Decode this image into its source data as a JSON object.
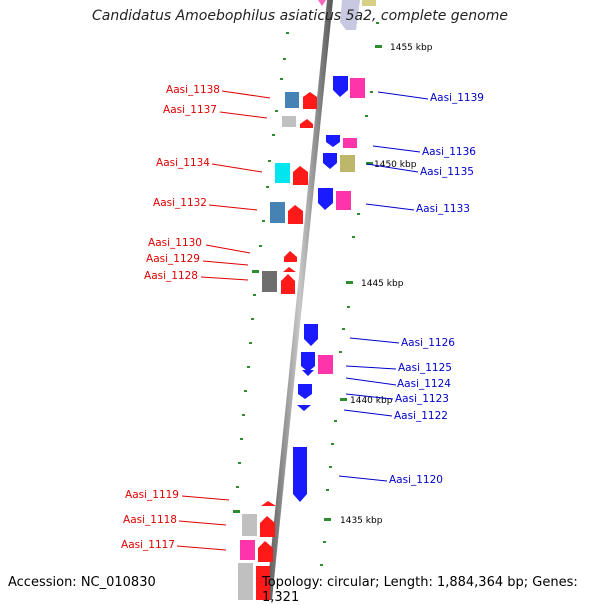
{
  "title": "Candidatus Amoebophilus asiaticus 5a2, complete genome",
  "footer": {
    "accession": "Accession: NC_010830",
    "topology": "Topology: circular; Length: 1,884,364 bp; Genes: 1,321"
  },
  "colors": {
    "backbone": "#8a8a8a",
    "tick": "#2e8b2e",
    "left_label": "#e00000",
    "right_label": "#0000cc",
    "red": "#ff1a1a",
    "blue": "#1a1aff",
    "magenta": "#ff33aa",
    "steelblue": "#4682b4",
    "silver": "#c0c0c0",
    "cyan": "#00e5ee",
    "olive": "#bdb76b",
    "dimgray": "#6e6e6e"
  },
  "scale_labels": [
    {
      "text": "1455 kbp"
    },
    {
      "text": "1450 kbp"
    },
    {
      "text": "1445 kbp"
    },
    {
      "text": "1440 kbp"
    },
    {
      "text": "1435 kbp"
    }
  ],
  "left_genes": [
    {
      "label": "Aasi_1138"
    },
    {
      "label": "Aasi_1137"
    },
    {
      "label": "Aasi_1134"
    },
    {
      "label": "Aasi_1132"
    },
    {
      "label": "Aasi_1130"
    },
    {
      "label": "Aasi_1129"
    },
    {
      "label": "Aasi_1128"
    },
    {
      "label": "Aasi_1119"
    },
    {
      "label": "Aasi_1118"
    },
    {
      "label": "Aasi_1117"
    }
  ],
  "right_genes": [
    {
      "label": "Aasi_1139"
    },
    {
      "label": "Aasi_1136"
    },
    {
      "label": "Aasi_1135"
    },
    {
      "label": "Aasi_1133"
    },
    {
      "label": "Aasi_1126"
    },
    {
      "label": "Aasi_1125"
    },
    {
      "label": "Aasi_1124"
    },
    {
      "label": "Aasi_1123"
    },
    {
      "label": "Aasi_1122"
    },
    {
      "label": "Aasi_1120"
    }
  ]
}
